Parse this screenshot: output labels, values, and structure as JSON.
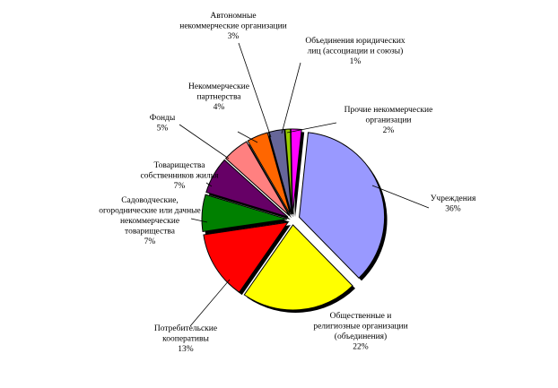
{
  "chart_data": {
    "type": "pie",
    "title": "",
    "exploded": true,
    "shadow": true,
    "slices": [
      {
        "label_lines": [
          "Учреждения"
        ],
        "value": 36,
        "value_label": "36%",
        "color": "#9999ff"
      },
      {
        "label_lines": [
          "Общественные и",
          "религиозные организации",
          "(объединения)"
        ],
        "value": 22,
        "value_label": "22%",
        "color": "#ffff00"
      },
      {
        "label_lines": [
          "Потребительские",
          "кооперативы"
        ],
        "value": 13,
        "value_label": "13%",
        "color": "#ff0000"
      },
      {
        "label_lines": [
          "Садоводческие,",
          "огороднические или дачные",
          "некоммерческие",
          "товарищества"
        ],
        "value": 7,
        "value_label": "7%",
        "color": "#008000"
      },
      {
        "label_lines": [
          "Товарищества",
          "собственников жилья"
        ],
        "value": 7,
        "value_label": "7%",
        "color": "#660066"
      },
      {
        "label_lines": [
          "Фонды"
        ],
        "value": 5,
        "value_label": "5%",
        "color": "#ff8080"
      },
      {
        "label_lines": [
          "Некоммерческие",
          "партнерства"
        ],
        "value": 4,
        "value_label": "4%",
        "color": "#ff6600"
      },
      {
        "label_lines": [
          "Автономные",
          "некоммерческие организации"
        ],
        "value": 3,
        "value_label": "3%",
        "color": "#666699"
      },
      {
        "label_lines": [
          "Объединения юридических",
          "лиц (ассоциации и союзы)"
        ],
        "value": 1,
        "value_label": "1%",
        "color": "#99cc00"
      },
      {
        "label_lines": [
          "Прочие некоммерческие",
          "организации"
        ],
        "value": 2,
        "value_label": "2%",
        "color": "#ff00ff"
      }
    ]
  }
}
